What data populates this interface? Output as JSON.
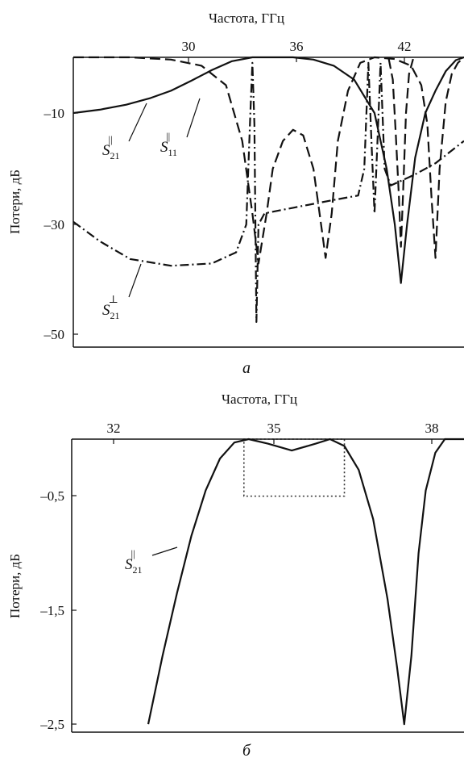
{
  "figure": {
    "charts": [
      {
        "caption": "а",
        "xlabel": "Частота, ГГц",
        "ylabel": "Потери, дБ",
        "xticks": [
          30,
          36,
          42
        ],
        "xtick_labels": [
          "30",
          "36",
          "42"
        ],
        "yticks": [
          -10,
          -30,
          -50
        ],
        "ytick_labels": [
          "–10",
          "–30",
          "–50"
        ],
        "annotations": [
          {
            "base": "S",
            "sub": "21",
            "sup": "||"
          },
          {
            "base": "S",
            "sub": "11",
            "sup": "||"
          },
          {
            "base": "S",
            "sub": "21",
            "sup": "⊥"
          }
        ]
      },
      {
        "caption": "б",
        "xlabel": "Частота, ГГц",
        "ylabel": "Потери, дБ",
        "xticks": [
          32,
          35,
          38
        ],
        "xtick_labels": [
          "32",
          "35",
          "38"
        ],
        "yticks": [
          -0.5,
          -1.5,
          -2.5
        ],
        "ytick_labels": [
          "–0,5",
          "–1,5",
          "–2,5"
        ],
        "annotations": [
          {
            "base": "S",
            "sub": "21",
            "sup": "||"
          }
        ]
      }
    ]
  },
  "chart_data": [
    {
      "type": "line",
      "xlabel": "Частота, ГГц",
      "ylabel": "Потери, дБ",
      "xlim": [
        25.2,
        44.4
      ],
      "ylim": [
        -52,
        0
      ],
      "grid": false,
      "legend": "none",
      "series": [
        {
          "name": "S21∥",
          "style": "solid",
          "points": [
            [
              25.2,
              -10
            ],
            [
              26.5,
              -9.4
            ],
            [
              27.8,
              -8.5
            ],
            [
              29,
              -7.3
            ],
            [
              30,
              -6
            ],
            [
              31,
              -4.2
            ],
            [
              32,
              -2.3
            ],
            [
              33,
              -0.7
            ],
            [
              34,
              0
            ],
            [
              36,
              0
            ],
            [
              37,
              -0.4
            ],
            [
              38,
              -1.5
            ],
            [
              39,
              -4
            ],
            [
              40,
              -10
            ],
            [
              40.6,
              -20
            ],
            [
              41,
              -30
            ],
            [
              41.3,
              -40.5
            ],
            [
              41.6,
              -30
            ],
            [
              42,
              -18
            ],
            [
              42.5,
              -10
            ],
            [
              43,
              -6
            ],
            [
              43.5,
              -2.5
            ],
            [
              44,
              -0.5
            ],
            [
              44.4,
              0
            ]
          ]
        },
        {
          "name": "S11∥",
          "style": "dashed",
          "points": [
            [
              25.2,
              0
            ],
            [
              28,
              0
            ],
            [
              30,
              -0.4
            ],
            [
              31.5,
              -1.5
            ],
            [
              32.7,
              -5
            ],
            [
              33.5,
              -15
            ],
            [
              34,
              -28
            ],
            [
              34.3,
              -37
            ],
            [
              34.7,
              -28
            ],
            [
              35,
              -20
            ],
            [
              35.5,
              -15
            ],
            [
              36,
              -13
            ],
            [
              36.5,
              -14
            ],
            [
              37,
              -20
            ],
            [
              37.3,
              -28
            ],
            [
              37.6,
              -36
            ],
            [
              37.9,
              -28
            ],
            [
              38.2,
              -15
            ],
            [
              38.7,
              -6
            ],
            [
              39.3,
              -1
            ],
            [
              40,
              0
            ],
            [
              41,
              -0.3
            ],
            [
              41.8,
              -1.5
            ],
            [
              42.3,
              -5
            ],
            [
              42.6,
              -12
            ],
            [
              42.8,
              -25
            ],
            [
              43,
              -36
            ],
            [
              43.2,
              -20
            ],
            [
              43.5,
              -8
            ],
            [
              43.8,
              -3
            ],
            [
              44.1,
              -1
            ],
            [
              44.4,
              0
            ]
          ]
        },
        {
          "name": "S11∥ (tail)",
          "style": "dashed",
          "points": [
            [
              40.7,
              -0.2
            ],
            [
              40.9,
              -4
            ],
            [
              41.05,
              -14
            ],
            [
              41.2,
              -25
            ],
            [
              41.3,
              -34
            ],
            [
              41.4,
              -25
            ],
            [
              41.55,
              -10
            ],
            [
              41.7,
              -3
            ],
            [
              41.9,
              -0.3
            ]
          ]
        },
        {
          "name": "S21⊥",
          "style": "dashdot",
          "points": [
            [
              25.2,
              -29.5
            ],
            [
              26.5,
              -33
            ],
            [
              28,
              -36.2
            ],
            [
              30,
              -37.4
            ],
            [
              32,
              -37
            ],
            [
              33.2,
              -35
            ],
            [
              33.7,
              -30
            ],
            [
              33.9,
              -10
            ],
            [
              34,
              -1
            ],
            [
              34.1,
              -12
            ],
            [
              34.2,
              -47.5
            ],
            [
              34.3,
              -30
            ],
            [
              34.6,
              -28
            ],
            [
              36,
              -27
            ],
            [
              38,
              -25.6
            ],
            [
              39.2,
              -24.8
            ],
            [
              39.5,
              -20
            ],
            [
              39.7,
              -1
            ],
            [
              39.85,
              -15
            ],
            [
              40,
              -28
            ],
            [
              40.15,
              -15
            ],
            [
              40.3,
              -1
            ],
            [
              40.5,
              -20
            ],
            [
              40.8,
              -23
            ],
            [
              42,
              -21
            ],
            [
              43,
              -19
            ],
            [
              44.4,
              -15
            ]
          ]
        }
      ]
    },
    {
      "type": "line",
      "xlabel": "Частота, ГГц",
      "ylabel": "Потери, дБ",
      "xlim": [
        30.9,
        39.1
      ],
      "ylim": [
        -2.57,
        0
      ],
      "grid": false,
      "legend": "none",
      "series": [
        {
          "name": "S21∥",
          "style": "solid",
          "points": [
            [
              32.5,
              -2.5
            ],
            [
              32.8,
              -1.9
            ],
            [
              33.1,
              -1.35
            ],
            [
              33.4,
              -0.85
            ],
            [
              33.7,
              -0.45
            ],
            [
              34,
              -0.17
            ],
            [
              34.3,
              -0.03
            ],
            [
              34.6,
              0
            ],
            [
              35,
              -0.04
            ],
            [
              35.5,
              -0.1
            ],
            [
              36,
              -0.04
            ],
            [
              36.3,
              0
            ],
            [
              36.6,
              -0.06
            ],
            [
              36.9,
              -0.27
            ],
            [
              37.2,
              -0.7
            ],
            [
              37.5,
              -1.4
            ],
            [
              37.7,
              -2.0
            ],
            [
              37.85,
              -2.5
            ],
            [
              38,
              -1.9
            ],
            [
              38.15,
              -1.0
            ],
            [
              38.3,
              -0.45
            ],
            [
              38.5,
              -0.12
            ],
            [
              38.7,
              0
            ],
            [
              39.1,
              0
            ]
          ]
        }
      ],
      "shapes": [
        {
          "type": "rect",
          "style": "dotted",
          "x": [
            34.5,
            36.6
          ],
          "y": [
            -0.5,
            0
          ]
        }
      ]
    }
  ]
}
